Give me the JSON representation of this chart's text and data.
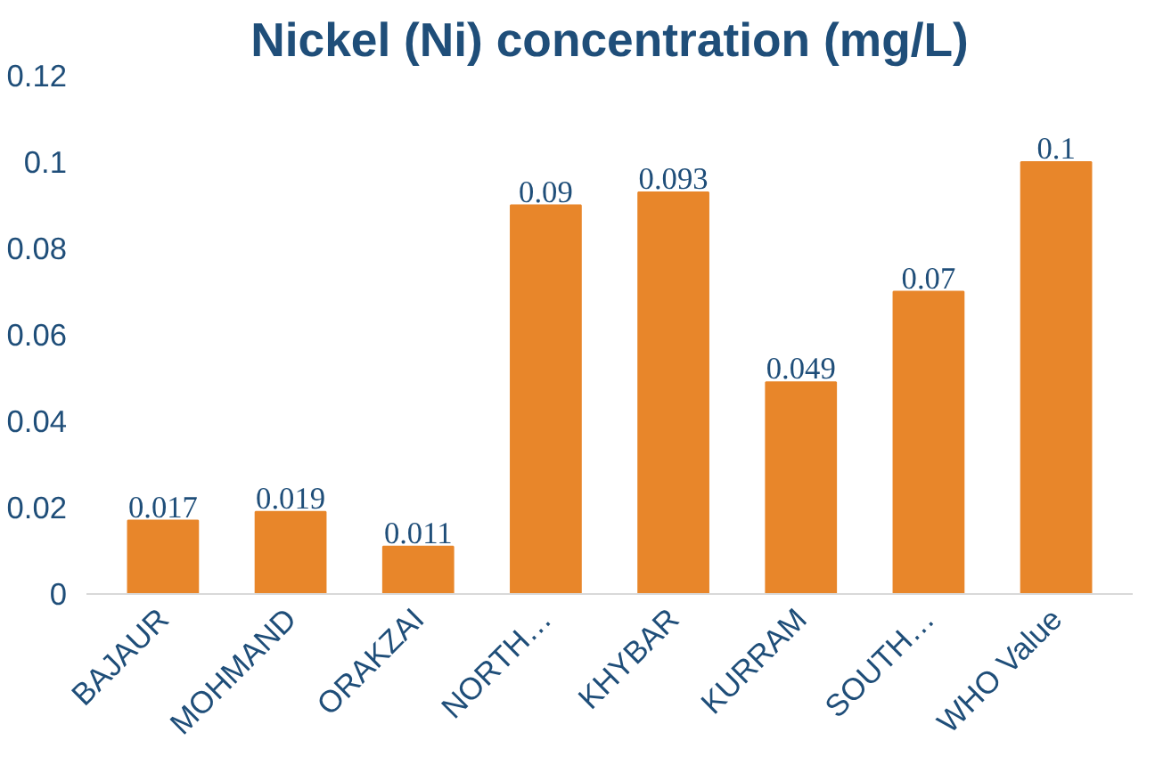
{
  "chart_data": {
    "type": "bar",
    "title": "Nickel (Ni) concentration (mg/L)",
    "categories": [
      "BAJAUR",
      "MOHMAND",
      "ORAKZAI",
      "NORTH…",
      "KHYBAR",
      "KURRAM",
      "SOUTH…",
      "WHO Value"
    ],
    "values": [
      0.017,
      0.019,
      0.011,
      0.09,
      0.093,
      0.049,
      0.07,
      0.1
    ],
    "color": "#e8862a",
    "ylim": [
      0,
      0.12
    ],
    "yticks": [
      {
        "value": 0,
        "label": "0"
      },
      0.02,
      0.04,
      0.06,
      0.08,
      {
        "value": 0.1,
        "label": "0.1"
      },
      0.12
    ],
    "data_labels": true,
    "grid": false
  }
}
